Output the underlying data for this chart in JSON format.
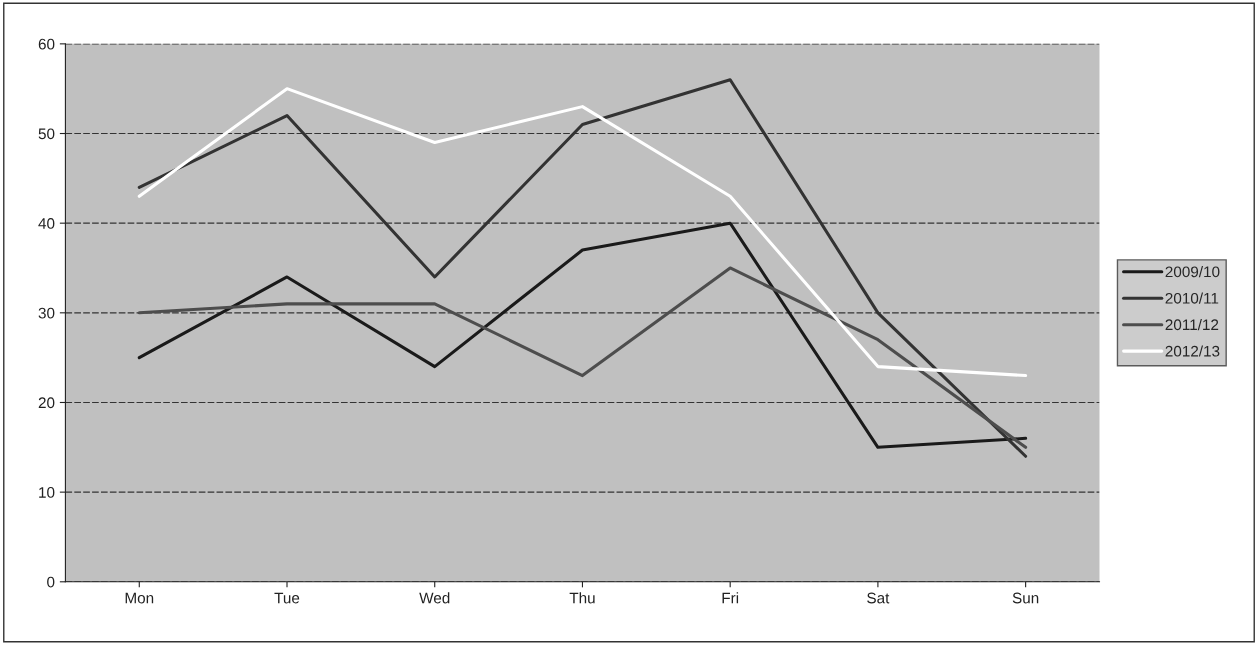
{
  "chart_data": {
    "type": "line",
    "categories": [
      "Mon",
      "Tue",
      "Wed",
      "Thu",
      "Fri",
      "Sat",
      "Sun"
    ],
    "series": [
      {
        "name": "2009/10",
        "color": "#1a1a1a",
        "values": [
          25,
          34,
          24,
          37,
          40,
          15,
          16
        ]
      },
      {
        "name": "2010/11",
        "color": "#333333",
        "values": [
          44,
          52,
          34,
          51,
          56,
          30,
          14
        ]
      },
      {
        "name": "2011/12",
        "color": "#4d4d4d",
        "values": [
          30,
          31,
          31,
          23,
          35,
          27,
          15
        ]
      },
      {
        "name": "2012/13",
        "color": "#ffffff",
        "values": [
          43,
          55,
          49,
          53,
          43,
          24,
          23
        ]
      }
    ],
    "ylim": [
      0,
      60
    ],
    "yticks": [
      0,
      10,
      20,
      30,
      40,
      50,
      60
    ],
    "grid": "y",
    "legend": "right",
    "marker": "none",
    "line_style": "solid"
  }
}
